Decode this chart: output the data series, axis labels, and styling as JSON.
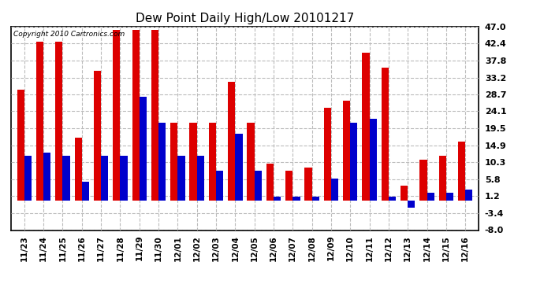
{
  "title": "Dew Point Daily High/Low 20101217",
  "copyright": "Copyright 2010 Cartronics.com",
  "dates": [
    "11/23",
    "11/24",
    "11/25",
    "11/26",
    "11/27",
    "11/28",
    "11/29",
    "11/30",
    "12/01",
    "12/02",
    "12/03",
    "12/04",
    "12/05",
    "12/06",
    "12/07",
    "12/08",
    "12/09",
    "12/10",
    "12/11",
    "12/12",
    "12/13",
    "12/14",
    "12/15",
    "12/16"
  ],
  "highs": [
    30,
    43,
    43,
    17,
    35,
    46,
    46,
    46,
    21,
    21,
    21,
    32,
    21,
    10,
    8,
    9,
    25,
    27,
    40,
    36,
    4,
    11,
    12,
    16
  ],
  "lows": [
    12,
    13,
    12,
    5,
    12,
    12,
    28,
    21,
    12,
    12,
    8,
    18,
    8,
    1,
    1,
    1,
    6,
    21,
    22,
    1,
    -2,
    2,
    2,
    3
  ],
  "high_color": "#dd0000",
  "low_color": "#0000cc",
  "background_color": "#ffffff",
  "grid_color": "#bbbbbb",
  "ylim": [
    -8.0,
    47.0
  ],
  "yticks": [
    -8.0,
    -3.4,
    1.2,
    5.8,
    10.3,
    14.9,
    19.5,
    24.1,
    28.7,
    33.2,
    37.8,
    42.4,
    47.0
  ],
  "title_fontsize": 11,
  "bar_width": 0.38,
  "fig_width": 6.9,
  "fig_height": 3.75,
  "dpi": 100
}
